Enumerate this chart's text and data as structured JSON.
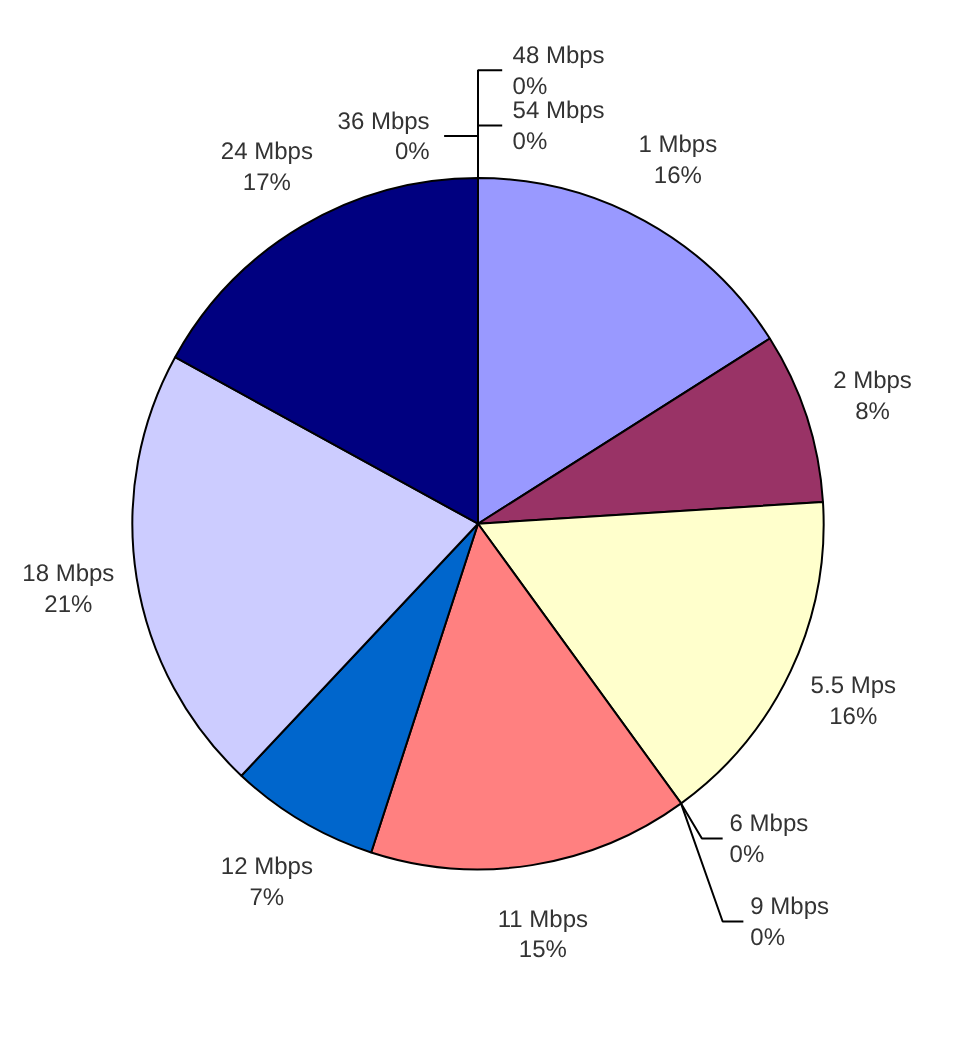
{
  "chart_data": {
    "type": "pie",
    "categories": [
      "1 Mbps",
      "2 Mbps",
      "5.5 Mps",
      "6 Mbps",
      "9 Mbps",
      "11 Mbps",
      "12 Mbps",
      "18 Mbps",
      "24 Mbps",
      "36 Mbps",
      "48 Mbps",
      "54 Mbps"
    ],
    "values": [
      16,
      8,
      16,
      0,
      0,
      15,
      7,
      21,
      17,
      0,
      0,
      0
    ],
    "value_labels": [
      "16%",
      "8%",
      "16%",
      "0%",
      "0%",
      "15%",
      "7%",
      "21%",
      "17%",
      "0%",
      "0%",
      "0%"
    ],
    "colors": [
      "#9999ff",
      "#993366",
      "#ffffcc",
      "#ccffff",
      "#660066",
      "#ff8080",
      "#0066cc",
      "#ccccff",
      "#000080",
      "#ff00ff",
      "#ffff00",
      "#00ffff"
    ]
  }
}
